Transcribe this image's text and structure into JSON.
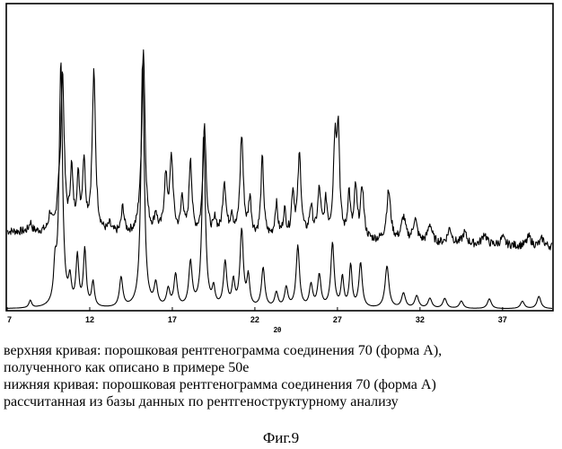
{
  "chart_data": {
    "type": "line",
    "title": "",
    "xlabel": "2θ",
    "ylabel": "",
    "xlim": [
      7,
      40
    ],
    "ylim": [
      0,
      100
    ],
    "x_ticks": [
      "7",
      "12",
      "17",
      "22",
      "27",
      "32",
      "37"
    ],
    "x_tick_values": [
      7,
      12,
      17,
      22,
      27,
      32,
      37
    ],
    "grid": false,
    "legend": "none",
    "series": [
      {
        "role": "upper",
        "baseline": 40,
        "noise": 2.2,
        "peaks": [
          [
            8.4,
            5,
            0.1
          ],
          [
            9.6,
            9,
            0.1
          ],
          [
            10.1,
            14,
            0.1
          ],
          [
            10.35,
            85,
            0.12
          ],
          [
            10.9,
            32,
            0.1
          ],
          [
            11.3,
            27,
            0.1
          ],
          [
            11.65,
            37,
            0.1
          ],
          [
            12.25,
            86,
            0.12
          ],
          [
            13.2,
            4,
            0.1
          ],
          [
            14.0,
            14,
            0.1
          ],
          [
            15.0,
            5,
            0.1
          ],
          [
            15.25,
            100,
            0.12
          ],
          [
            16.0,
            10,
            0.1
          ],
          [
            16.6,
            29,
            0.12
          ],
          [
            16.95,
            40,
            0.12
          ],
          [
            17.6,
            20,
            0.1
          ],
          [
            18.1,
            41,
            0.1
          ],
          [
            18.95,
            60,
            0.12
          ],
          [
            19.6,
            8,
            0.1
          ],
          [
            20.15,
            29,
            0.12
          ],
          [
            20.6,
            11,
            0.1
          ],
          [
            21.2,
            54,
            0.12
          ],
          [
            21.7,
            20,
            0.1
          ],
          [
            22.45,
            43,
            0.1
          ],
          [
            23.3,
            18,
            0.1
          ],
          [
            23.8,
            14,
            0.1
          ],
          [
            24.3,
            24,
            0.1
          ],
          [
            24.7,
            44,
            0.12
          ],
          [
            25.4,
            16,
            0.12
          ],
          [
            25.9,
            25,
            0.12
          ],
          [
            26.3,
            18,
            0.1
          ],
          [
            26.85,
            50,
            0.12
          ],
          [
            27.05,
            53,
            0.1
          ],
          [
            27.7,
            24,
            0.1
          ],
          [
            28.1,
            27,
            0.1
          ],
          [
            28.5,
            28,
            0.12
          ],
          [
            30.1,
            27,
            0.15
          ],
          [
            31.0,
            13,
            0.15
          ],
          [
            31.7,
            12,
            0.15
          ],
          [
            32.6,
            10,
            0.15
          ],
          [
            33.8,
            8,
            0.15
          ],
          [
            34.7,
            6,
            0.15
          ],
          [
            35.9,
            6,
            0.15
          ],
          [
            37.0,
            4,
            0.15
          ],
          [
            38.6,
            5,
            0.15
          ],
          [
            39.4,
            4,
            0.15
          ]
        ]
      },
      {
        "role": "lower",
        "baseline": 0,
        "noise": 0,
        "peaks": [
          [
            8.4,
            3,
            0.1
          ],
          [
            9.9,
            14,
            0.1
          ],
          [
            10.25,
            99,
            0.12
          ],
          [
            10.8,
            10,
            0.1
          ],
          [
            11.25,
            20,
            0.1
          ],
          [
            11.7,
            23,
            0.1
          ],
          [
            12.2,
            10,
            0.1
          ],
          [
            13.9,
            12,
            0.12
          ],
          [
            15.2,
            100,
            0.12
          ],
          [
            16.0,
            9,
            0.12
          ],
          [
            16.75,
            7,
            0.12
          ],
          [
            17.2,
            13,
            0.12
          ],
          [
            18.1,
            18,
            0.12
          ],
          [
            18.9,
            70,
            0.12
          ],
          [
            19.5,
            7,
            0.1
          ],
          [
            20.2,
            18,
            0.12
          ],
          [
            20.7,
            10,
            0.1
          ],
          [
            21.2,
            31,
            0.12
          ],
          [
            21.6,
            12,
            0.1
          ],
          [
            22.5,
            16,
            0.12
          ],
          [
            23.3,
            6,
            0.12
          ],
          [
            23.9,
            8,
            0.12
          ],
          [
            24.6,
            25,
            0.12
          ],
          [
            25.4,
            9,
            0.12
          ],
          [
            25.9,
            13,
            0.12
          ],
          [
            26.7,
            26,
            0.12
          ],
          [
            27.3,
            12,
            0.1
          ],
          [
            27.8,
            17,
            0.1
          ],
          [
            28.4,
            18,
            0.12
          ],
          [
            30.0,
            17,
            0.14
          ],
          [
            31.0,
            6,
            0.14
          ],
          [
            31.8,
            5,
            0.14
          ],
          [
            32.6,
            4,
            0.14
          ],
          [
            33.5,
            4,
            0.14
          ],
          [
            34.5,
            3,
            0.14
          ],
          [
            36.2,
            4,
            0.14
          ],
          [
            38.2,
            3,
            0.14
          ],
          [
            39.2,
            5,
            0.14
          ]
        ]
      }
    ]
  },
  "caption": {
    "line1": "верхняя кривая: порошковая рентгенограмма соединения 70 (форма А),",
    "line2": "полученного как описано в примере 50е",
    "line3": "нижняя кривая: порошковая рентгенограмма соединения 70 (форма А)",
    "line4": "рассчитанная из базы данных по рентгеноструктурному анализу"
  },
  "figure_label": "Фиг.9"
}
